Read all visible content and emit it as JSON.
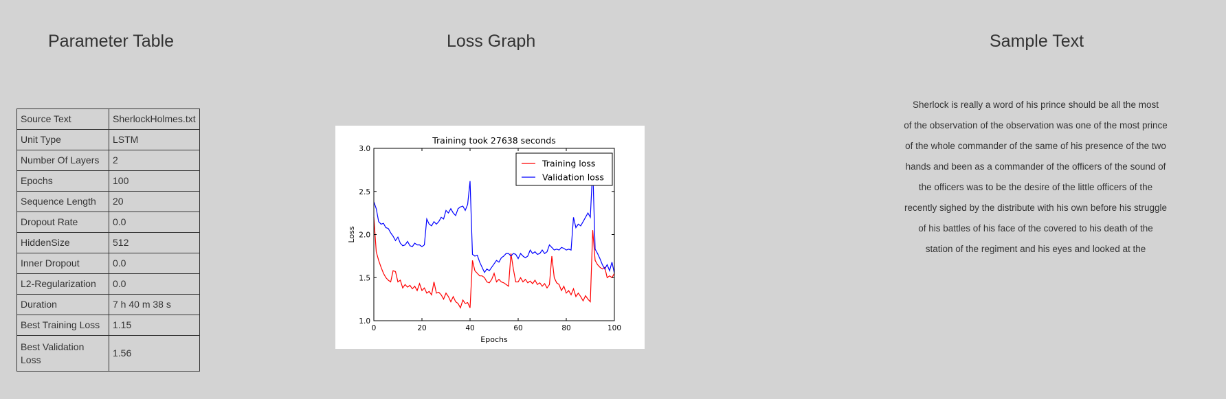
{
  "sections": {
    "parameter_table_title": "Parameter Table",
    "loss_graph_title": "Loss Graph",
    "sample_text_title": "Sample Text"
  },
  "parameters": [
    {
      "key": "Source Text",
      "value": "SherlockHolmes.txt"
    },
    {
      "key": "Unit Type",
      "value": "LSTM"
    },
    {
      "key": "Number Of Layers",
      "value": "2"
    },
    {
      "key": "Epochs",
      "value": "100"
    },
    {
      "key": "Sequence Length",
      "value": "20"
    },
    {
      "key": "Dropout Rate",
      "value": "0.0"
    },
    {
      "key": "HiddenSize",
      "value": "512"
    },
    {
      "key": "Inner Dropout",
      "value": "0.0"
    },
    {
      "key": "L2-Regularization",
      "value": "0.0"
    },
    {
      "key": "Duration",
      "value": "7 h 40 m 38 s"
    },
    {
      "key": "Best Training Loss",
      "value": "1.15"
    },
    {
      "key": "Best Validation Loss",
      "value": "1.56"
    }
  ],
  "chart_data": {
    "type": "line",
    "title": "Training took 27638 seconds",
    "xlabel": "Epochs",
    "ylabel": "Loss",
    "xlim": [
      0,
      100
    ],
    "ylim": [
      1.0,
      3.0
    ],
    "xticks": [
      "0",
      "20",
      "40",
      "60",
      "80",
      "100"
    ],
    "yticks": [
      "1.0",
      "1.5",
      "2.0",
      "2.5",
      "3.0"
    ],
    "grid": false,
    "legend_position": "top-right",
    "series": [
      {
        "name": "Training loss",
        "color": "#ff0000",
        "points": [
          [
            0,
            2.2
          ],
          [
            1,
            1.8
          ],
          [
            2,
            1.7
          ],
          [
            3,
            1.62
          ],
          [
            4,
            1.55
          ],
          [
            5,
            1.5
          ],
          [
            6,
            1.47
          ],
          [
            7,
            1.45
          ],
          [
            8,
            1.58
          ],
          [
            9,
            1.57
          ],
          [
            10,
            1.45
          ],
          [
            11,
            1.47
          ],
          [
            12,
            1.38
          ],
          [
            13,
            1.42
          ],
          [
            14,
            1.39
          ],
          [
            15,
            1.41
          ],
          [
            16,
            1.37
          ],
          [
            17,
            1.4
          ],
          [
            18,
            1.35
          ],
          [
            19,
            1.43
          ],
          [
            20,
            1.35
          ],
          [
            21,
            1.38
          ],
          [
            22,
            1.32
          ],
          [
            23,
            1.34
          ],
          [
            24,
            1.3
          ],
          [
            25,
            1.45
          ],
          [
            26,
            1.32
          ],
          [
            27,
            1.33
          ],
          [
            28,
            1.3
          ],
          [
            29,
            1.25
          ],
          [
            30,
            1.32
          ],
          [
            31,
            1.28
          ],
          [
            32,
            1.22
          ],
          [
            33,
            1.28
          ],
          [
            34,
            1.22
          ],
          [
            35,
            1.2
          ],
          [
            36,
            1.15
          ],
          [
            37,
            1.24
          ],
          [
            38,
            1.2
          ],
          [
            39,
            1.21
          ],
          [
            40,
            1.15
          ],
          [
            41,
            1.7
          ],
          [
            42,
            1.58
          ],
          [
            43,
            1.55
          ],
          [
            44,
            1.52
          ],
          [
            45,
            1.52
          ],
          [
            46,
            1.5
          ],
          [
            47,
            1.45
          ],
          [
            48,
            1.44
          ],
          [
            49,
            1.48
          ],
          [
            50,
            1.55
          ],
          [
            51,
            1.45
          ],
          [
            52,
            1.48
          ],
          [
            53,
            1.45
          ],
          [
            54,
            1.44
          ],
          [
            55,
            1.42
          ],
          [
            56,
            1.4
          ],
          [
            57,
            1.78
          ],
          [
            58,
            1.6
          ],
          [
            59,
            1.45
          ],
          [
            60,
            1.45
          ],
          [
            61,
            1.5
          ],
          [
            62,
            1.45
          ],
          [
            63,
            1.48
          ],
          [
            64,
            1.44
          ],
          [
            65,
            1.46
          ],
          [
            66,
            1.43
          ],
          [
            67,
            1.47
          ],
          [
            68,
            1.42
          ],
          [
            69,
            1.44
          ],
          [
            70,
            1.4
          ],
          [
            71,
            1.43
          ],
          [
            72,
            1.38
          ],
          [
            73,
            1.42
          ],
          [
            74,
            1.75
          ],
          [
            75,
            1.5
          ],
          [
            76,
            1.44
          ],
          [
            77,
            1.42
          ],
          [
            78,
            1.35
          ],
          [
            79,
            1.4
          ],
          [
            80,
            1.32
          ],
          [
            81,
            1.35
          ],
          [
            82,
            1.3
          ],
          [
            83,
            1.37
          ],
          [
            84,
            1.28
          ],
          [
            85,
            1.32
          ],
          [
            86,
            1.28
          ],
          [
            87,
            1.23
          ],
          [
            88,
            1.29
          ],
          [
            89,
            1.25
          ],
          [
            90,
            1.22
          ],
          [
            91,
            2.05
          ],
          [
            92,
            1.7
          ],
          [
            93,
            1.65
          ],
          [
            94,
            1.62
          ],
          [
            95,
            1.6
          ],
          [
            96,
            1.62
          ],
          [
            97,
            1.5
          ],
          [
            98,
            1.52
          ],
          [
            99,
            1.5
          ],
          [
            100,
            1.55
          ]
        ]
      },
      {
        "name": "Validation loss",
        "color": "#0000ff",
        "points": [
          [
            0,
            2.38
          ],
          [
            1,
            2.3
          ],
          [
            2,
            2.15
          ],
          [
            3,
            2.12
          ],
          [
            4,
            2.13
          ],
          [
            5,
            2.08
          ],
          [
            6,
            2.07
          ],
          [
            7,
            2.02
          ],
          [
            8,
            1.98
          ],
          [
            9,
            1.93
          ],
          [
            10,
            1.97
          ],
          [
            11,
            1.9
          ],
          [
            12,
            1.87
          ],
          [
            13,
            1.88
          ],
          [
            14,
            1.92
          ],
          [
            15,
            1.87
          ],
          [
            16,
            1.86
          ],
          [
            17,
            1.9
          ],
          [
            18,
            1.88
          ],
          [
            19,
            1.88
          ],
          [
            20,
            1.86
          ],
          [
            21,
            1.88
          ],
          [
            22,
            2.18
          ],
          [
            23,
            2.12
          ],
          [
            24,
            2.1
          ],
          [
            25,
            2.15
          ],
          [
            26,
            2.12
          ],
          [
            27,
            2.15
          ],
          [
            28,
            2.2
          ],
          [
            29,
            2.18
          ],
          [
            30,
            2.28
          ],
          [
            31,
            2.25
          ],
          [
            32,
            2.3
          ],
          [
            33,
            2.25
          ],
          [
            34,
            2.22
          ],
          [
            35,
            2.3
          ],
          [
            36,
            2.32
          ],
          [
            37,
            2.33
          ],
          [
            38,
            2.28
          ],
          [
            39,
            2.35
          ],
          [
            40,
            2.62
          ],
          [
            41,
            1.77
          ],
          [
            42,
            1.75
          ],
          [
            43,
            1.76
          ],
          [
            44,
            1.68
          ],
          [
            45,
            1.62
          ],
          [
            46,
            1.56
          ],
          [
            47,
            1.6
          ],
          [
            48,
            1.58
          ],
          [
            49,
            1.62
          ],
          [
            50,
            1.66
          ],
          [
            51,
            1.7
          ],
          [
            52,
            1.68
          ],
          [
            53,
            1.73
          ],
          [
            54,
            1.75
          ],
          [
            55,
            1.78
          ],
          [
            56,
            1.78
          ],
          [
            57,
            1.75
          ],
          [
            58,
            1.78
          ],
          [
            59,
            1.77
          ],
          [
            60,
            1.72
          ],
          [
            61,
            1.78
          ],
          [
            62,
            1.75
          ],
          [
            63,
            1.73
          ],
          [
            64,
            1.75
          ],
          [
            65,
            1.82
          ],
          [
            66,
            1.78
          ],
          [
            67,
            1.8
          ],
          [
            68,
            1.77
          ],
          [
            69,
            1.78
          ],
          [
            70,
            1.82
          ],
          [
            71,
            1.78
          ],
          [
            72,
            1.8
          ],
          [
            73,
            1.88
          ],
          [
            74,
            1.85
          ],
          [
            75,
            1.82
          ],
          [
            76,
            1.83
          ],
          [
            77,
            1.82
          ],
          [
            78,
            1.85
          ],
          [
            79,
            1.84
          ],
          [
            80,
            1.82
          ],
          [
            81,
            1.83
          ],
          [
            82,
            1.82
          ],
          [
            83,
            2.2
          ],
          [
            84,
            2.08
          ],
          [
            85,
            2.12
          ],
          [
            86,
            2.1
          ],
          [
            87,
            2.15
          ],
          [
            88,
            2.2
          ],
          [
            89,
            2.25
          ],
          [
            90,
            2.2
          ],
          [
            91,
            2.78
          ],
          [
            92,
            1.83
          ],
          [
            93,
            1.78
          ],
          [
            94,
            1.72
          ],
          [
            95,
            1.65
          ],
          [
            96,
            1.6
          ],
          [
            97,
            1.65
          ],
          [
            98,
            1.58
          ],
          [
            99,
            1.68
          ],
          [
            100,
            1.55
          ]
        ]
      }
    ]
  },
  "sample_text": {
    "lines": [
      "Sherlock is really a word of his prince should be all the most",
      "of the observation of the observation was one of the most prince",
      "of the whole commander of the same of his presence of the two",
      "hands and been as a commander of the officers of the sound of",
      "the officers was to be the desire of the little officers of the",
      "recently sighed by the distribute with his own before his struggle",
      "of his battles of his face of the covered to his death of the",
      "station of the regiment and his eyes and looked at the"
    ]
  }
}
